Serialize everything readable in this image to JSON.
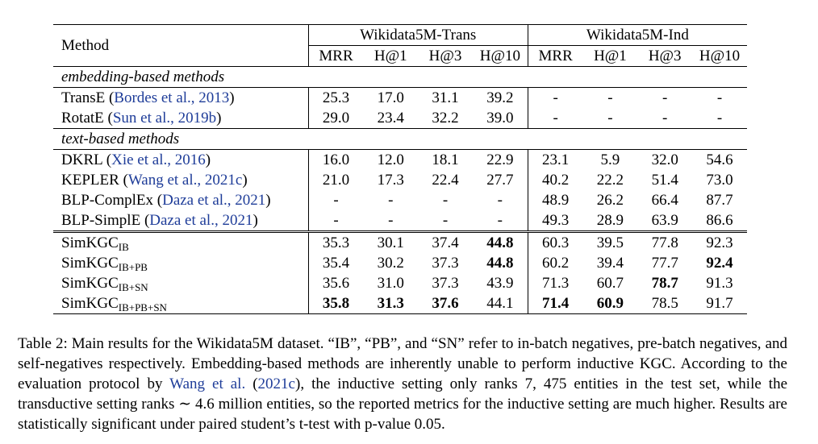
{
  "table": {
    "method_header": "Method",
    "groups": [
      "Wikidata5M-Trans",
      "Wikidata5M-Ind"
    ],
    "metrics": [
      "MRR",
      "H@1",
      "H@3",
      "H@10",
      "MRR",
      "H@1",
      "H@3",
      "H@10"
    ],
    "sections": [
      {
        "title": "embedding-based methods",
        "rows": [
          {
            "name": "TransE",
            "cite": "Bordes et al.,",
            "year": "2013",
            "values": [
              "25.3",
              "17.0",
              "31.1",
              "39.2",
              "-",
              "-",
              "-",
              "-"
            ]
          },
          {
            "name": "RotatE",
            "cite": "Sun et al.,",
            "year": "2019b",
            "values": [
              "29.0",
              "23.4",
              "32.2",
              "39.0",
              "-",
              "-",
              "-",
              "-"
            ]
          }
        ]
      },
      {
        "title": "text-based methods",
        "rows": [
          {
            "name": "DKRL",
            "cite": "Xie et al.,",
            "year": "2016",
            "values": [
              "16.0",
              "12.0",
              "18.1",
              "22.9",
              "23.1",
              "5.9",
              "32.0",
              "54.6"
            ]
          },
          {
            "name": "KEPLER",
            "cite": "Wang et al.,",
            "year": "2021c",
            "values": [
              "21.0",
              "17.3",
              "22.4",
              "27.7",
              "40.2",
              "22.2",
              "51.4",
              "73.0"
            ]
          },
          {
            "name": "BLP-ComplEx",
            "cite": "Daza et al.,",
            "year": "2021",
            "values": [
              "-",
              "-",
              "-",
              "-",
              "48.9",
              "26.2",
              "66.4",
              "87.7"
            ]
          },
          {
            "name": "BLP-SimplE",
            "cite": "Daza et al.,",
            "year": "2021",
            "values": [
              "-",
              "-",
              "-",
              "-",
              "49.3",
              "28.9",
              "63.9",
              "86.6"
            ]
          }
        ]
      }
    ],
    "ours": [
      {
        "name": "SimKGC",
        "sub": "IB",
        "values": [
          "35.3",
          "30.1",
          "37.4",
          "44.8",
          "60.3",
          "39.5",
          "77.8",
          "92.3"
        ],
        "bold": [
          false,
          false,
          false,
          true,
          false,
          false,
          false,
          false
        ]
      },
      {
        "name": "SimKGC",
        "sub": "IB+PB",
        "values": [
          "35.4",
          "30.2",
          "37.3",
          "44.8",
          "60.2",
          "39.4",
          "77.7",
          "92.4"
        ],
        "bold": [
          false,
          false,
          false,
          true,
          false,
          false,
          false,
          true
        ]
      },
      {
        "name": "SimKGC",
        "sub": "IB+SN",
        "values": [
          "35.6",
          "31.0",
          "37.3",
          "43.9",
          "71.3",
          "60.7",
          "78.7",
          "91.3"
        ],
        "bold": [
          false,
          false,
          false,
          false,
          false,
          false,
          true,
          false
        ]
      },
      {
        "name": "SimKGC",
        "sub": "IB+PB+SN",
        "values": [
          "35.8",
          "31.3",
          "37.6",
          "44.1",
          "71.4",
          "60.9",
          "78.5",
          "91.7"
        ],
        "bold": [
          true,
          true,
          true,
          false,
          true,
          true,
          false,
          false
        ]
      }
    ]
  },
  "caption": {
    "lead": "Table 2: Main results for the Wikidata5M dataset. “IB”, “PB”, and “SN” refer to in-batch negatives, pre-batch negatives, and self-negatives respectively. Embedding-based methods are inherently unable to perform inductive KGC. According to the evaluation protocol by ",
    "cite_author": "Wang et al.",
    "cite_year": "2021c",
    "mid": ", the inductive setting only ranks ",
    "num1": "7, 475",
    "mid2": " entities in the test set, while the transductive setting ranks ",
    "sim": "∼",
    "num2": "4.6",
    "tail": " million entities, so the reported metrics for the inductive setting are much higher. Results are statistically significant under paired student’s t-test with p-value ",
    "pval": "0.05",
    "end": "."
  }
}
